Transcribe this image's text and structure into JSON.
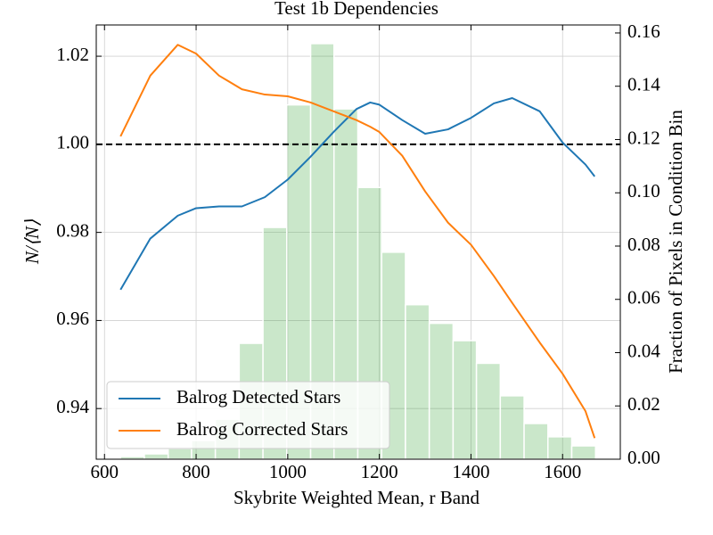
{
  "chart_data": {
    "type": "line",
    "title": "Test 1b Dependencies",
    "x_label": "Skybrite Weighted Mean, r Band",
    "y_label": "N/⟨N⟩",
    "y2_label": "Fraction of Pixels in Condition Bin",
    "xlim": [
      582,
      1726
    ],
    "ylim": [
      0.9285,
      1.0271
    ],
    "y2lim": [
      0,
      0.163
    ],
    "xticks": [
      600,
      800,
      1000,
      1200,
      1400,
      1600
    ],
    "yticks": [
      0.94,
      0.96,
      0.98,
      {
        "value": 1,
        "label": "1.00"
      },
      1.02
    ],
    "y2ticks": [
      {
        "value": 0,
        "label": "0.00"
      },
      0.02,
      0.04,
      0.06,
      0.08,
      {
        "value": 0.1,
        "label": "0.10"
      },
      0.12,
      0.14,
      0.16
    ],
    "grid": true,
    "legend": "lower left",
    "hline": 1,
    "histogram": {
      "axis": "y2",
      "color": "#2ca02c",
      "bins": [
        635,
        687,
        739,
        790,
        842,
        894,
        946,
        998,
        1050,
        1101,
        1153,
        1205,
        1257,
        1309,
        1361,
        1412,
        1464,
        1516,
        1568,
        1620,
        1672
      ],
      "values": [
        0.001,
        0.002,
        0.004,
        0.007,
        0.015,
        0.0435,
        0.087,
        0.133,
        0.156,
        0.1315,
        0.102,
        0.0777,
        0.058,
        0.051,
        0.0445,
        0.036,
        0.0238,
        0.0134,
        0.0084,
        0.005
      ]
    },
    "x": [
      635,
      700,
      760,
      800,
      850,
      900,
      950,
      1000,
      1050,
      1100,
      1150,
      1180,
      1200,
      1250,
      1300,
      1350,
      1400,
      1450,
      1490,
      1550,
      1600,
      1650,
      1670
    ],
    "series": [
      {
        "name": "Balrog Detected Stars",
        "color": "#1f77b4",
        "values": [
          0.967,
          0.9786,
          0.9838,
          0.9855,
          0.9859,
          0.9859,
          0.988,
          0.992,
          0.9972,
          1.0028,
          1.008,
          1.0095,
          1.009,
          1.0055,
          1.0024,
          1.0034,
          1.006,
          1.0093,
          1.0105,
          1.0075,
          1.0004,
          0.9954,
          0.9927
        ]
      },
      {
        "name": "Balrog Corrected Stars",
        "color": "#ff7f0e",
        "values": [
          1.0018,
          1.0156,
          1.0226,
          1.0206,
          1.0156,
          1.0125,
          1.0113,
          1.0109,
          1.0095,
          1.0075,
          1.0055,
          1.004,
          1.0028,
          0.9974,
          0.9893,
          0.9822,
          0.9772,
          0.9701,
          0.964,
          0.955,
          0.9479,
          0.9394,
          0.9333
        ]
      }
    ]
  }
}
